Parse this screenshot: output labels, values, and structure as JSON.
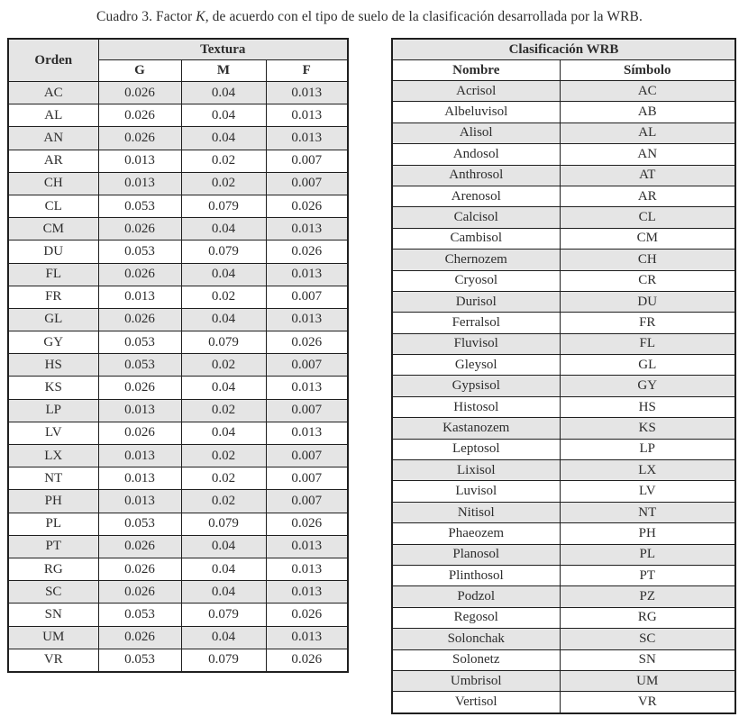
{
  "caption": {
    "prefix": "Cuadro 3. Factor ",
    "factor_symbol": "K",
    "suffix": ", de acuerdo con el tipo de suelo de la clasificación desarrollada por la WRB."
  },
  "left_table": {
    "col_orden": "Orden",
    "col_textura": "Textura",
    "subcols": [
      "G",
      "M",
      "F"
    ],
    "rows": [
      {
        "orden": "AC",
        "g": "0.026",
        "m": "0.04",
        "f": "0.013"
      },
      {
        "orden": "AL",
        "g": "0.026",
        "m": "0.04",
        "f": "0.013"
      },
      {
        "orden": "AN",
        "g": "0.026",
        "m": "0.04",
        "f": "0.013"
      },
      {
        "orden": "AR",
        "g": "0.013",
        "m": "0.02",
        "f": "0.007"
      },
      {
        "orden": "CH",
        "g": "0.013",
        "m": "0.02",
        "f": "0.007"
      },
      {
        "orden": "CL",
        "g": "0.053",
        "m": "0.079",
        "f": "0.026"
      },
      {
        "orden": "CM",
        "g": "0.026",
        "m": "0.04",
        "f": "0.013"
      },
      {
        "orden": "DU",
        "g": "0.053",
        "m": "0.079",
        "f": "0.026"
      },
      {
        "orden": "FL",
        "g": "0.026",
        "m": "0.04",
        "f": "0.013"
      },
      {
        "orden": "FR",
        "g": "0.013",
        "m": "0.02",
        "f": "0.007"
      },
      {
        "orden": "GL",
        "g": "0.026",
        "m": "0.04",
        "f": "0.013"
      },
      {
        "orden": "GY",
        "g": "0.053",
        "m": "0.079",
        "f": "0.026"
      },
      {
        "orden": "HS",
        "g": "0.053",
        "m": "0.02",
        "f": "0.007"
      },
      {
        "orden": "KS",
        "g": "0.026",
        "m": "0.04",
        "f": "0.013"
      },
      {
        "orden": "LP",
        "g": "0.013",
        "m": "0.02",
        "f": "0.007"
      },
      {
        "orden": "LV",
        "g": "0.026",
        "m": "0.04",
        "f": "0.013"
      },
      {
        "orden": "LX",
        "g": "0.013",
        "m": "0.02",
        "f": "0.007"
      },
      {
        "orden": "NT",
        "g": "0.013",
        "m": "0.02",
        "f": "0.007"
      },
      {
        "orden": "PH",
        "g": "0.013",
        "m": "0.02",
        "f": "0.007"
      },
      {
        "orden": "PL",
        "g": "0.053",
        "m": "0.079",
        "f": "0.026"
      },
      {
        "orden": "PT",
        "g": "0.026",
        "m": "0.04",
        "f": "0.013"
      },
      {
        "orden": "RG",
        "g": "0.026",
        "m": "0.04",
        "f": "0.013"
      },
      {
        "orden": "SC",
        "g": "0.026",
        "m": "0.04",
        "f": "0.013"
      },
      {
        "orden": "SN",
        "g": "0.053",
        "m": "0.079",
        "f": "0.026"
      },
      {
        "orden": "UM",
        "g": "0.026",
        "m": "0.04",
        "f": "0.013"
      },
      {
        "orden": "VR",
        "g": "0.053",
        "m": "0.079",
        "f": "0.026"
      }
    ]
  },
  "right_table": {
    "title": "Clasificación WRB",
    "col_nombre": "Nombre",
    "col_simbolo": "Símbolo",
    "rows": [
      {
        "nombre": "Acrisol",
        "simbolo": "AC"
      },
      {
        "nombre": "Albeluvisol",
        "simbolo": "AB"
      },
      {
        "nombre": "Alisol",
        "simbolo": "AL"
      },
      {
        "nombre": "Andosol",
        "simbolo": "AN"
      },
      {
        "nombre": "Anthrosol",
        "simbolo": "AT"
      },
      {
        "nombre": "Arenosol",
        "simbolo": "AR"
      },
      {
        "nombre": "Calcisol",
        "simbolo": "CL"
      },
      {
        "nombre": "Cambisol",
        "simbolo": "CM"
      },
      {
        "nombre": "Chernozem",
        "simbolo": "CH"
      },
      {
        "nombre": "Cryosol",
        "simbolo": "CR"
      },
      {
        "nombre": "Durisol",
        "simbolo": "DU"
      },
      {
        "nombre": "Ferralsol",
        "simbolo": "FR"
      },
      {
        "nombre": "Fluvisol",
        "simbolo": "FL"
      },
      {
        "nombre": "Gleysol",
        "simbolo": "GL"
      },
      {
        "nombre": "Gypsisol",
        "simbolo": "GY"
      },
      {
        "nombre": "Histosol",
        "simbolo": "HS"
      },
      {
        "nombre": "Kastanozem",
        "simbolo": "KS"
      },
      {
        "nombre": "Leptosol",
        "simbolo": "LP"
      },
      {
        "nombre": "Lixisol",
        "simbolo": "LX"
      },
      {
        "nombre": "Luvisol",
        "simbolo": "LV"
      },
      {
        "nombre": "Nitisol",
        "simbolo": "NT"
      },
      {
        "nombre": "Phaeozem",
        "simbolo": "PH"
      },
      {
        "nombre": "Planosol",
        "simbolo": "PL"
      },
      {
        "nombre": "Plinthosol",
        "simbolo": "PT"
      },
      {
        "nombre": "Podzol",
        "simbolo": "PZ"
      },
      {
        "nombre": "Regosol",
        "simbolo": "RG"
      },
      {
        "nombre": "Solonchak",
        "simbolo": "SC"
      },
      {
        "nombre": "Solonetz",
        "simbolo": "SN"
      },
      {
        "nombre": "Umbrisol",
        "simbolo": "UM"
      },
      {
        "nombre": "Vertisol",
        "simbolo": "VR"
      }
    ]
  },
  "colors": {
    "row_stripe": "#e5e5e5",
    "border": "#1f1f1f",
    "text": "#2d2d2d",
    "background": "#ffffff"
  }
}
